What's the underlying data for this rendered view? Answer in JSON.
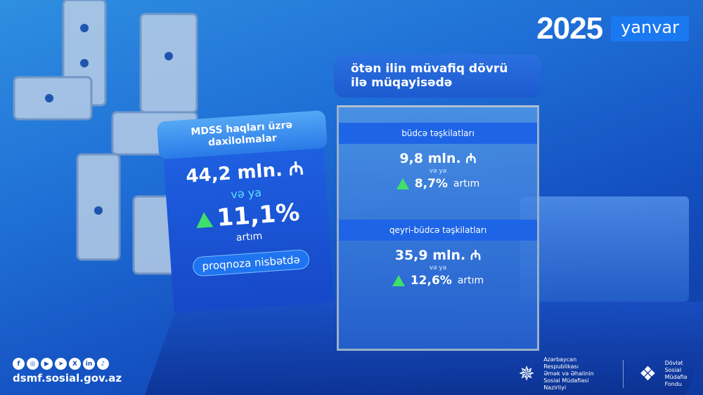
{
  "header": {
    "year": "2025",
    "month": "yanvar"
  },
  "left_card": {
    "title": "MDSS haqları üzrə daxilolmalar",
    "amount": "44,2 mln. ₼",
    "or": "və ya",
    "percent": "11,1%",
    "growth": "artım",
    "basis": "proqnoza nisbətdə"
  },
  "right_card": {
    "title_line1": "ötən ilin müvafiq dövrü",
    "title_line2": "ilə müqayisədə",
    "sections": [
      {
        "label": "büdcə təşkilatları",
        "amount": "9,8 mln. ₼",
        "or": "və ya",
        "percent": "8,7%",
        "growth": "artım"
      },
      {
        "label": "qeyri-büdcə təşkilatları",
        "amount": "35,9 mln. ₼",
        "or": "və ya",
        "percent": "12,6%",
        "growth": "artım"
      }
    ]
  },
  "footer": {
    "social": [
      {
        "name": "facebook",
        "glyph": "f"
      },
      {
        "name": "instagram",
        "glyph": "◎"
      },
      {
        "name": "youtube",
        "glyph": "▶"
      },
      {
        "name": "telegram",
        "glyph": "➤"
      },
      {
        "name": "x",
        "glyph": "X"
      },
      {
        "name": "linkedin",
        "glyph": "in"
      },
      {
        "name": "tiktok",
        "glyph": "♪"
      }
    ],
    "url": "dsmf.sosial.gov.az",
    "logo1": [
      "Azərbaycan Respublikası",
      "Əmək və Əhalinin",
      "Sosial Müdafiəsi Nazirliyi"
    ],
    "logo2": [
      "Dövlət",
      "Sosial Müdafiə",
      "Fondu"
    ]
  },
  "colors": {
    "accent": "#1a78f0",
    "up": "#3fe06a",
    "cyan": "#5fe0ff"
  }
}
